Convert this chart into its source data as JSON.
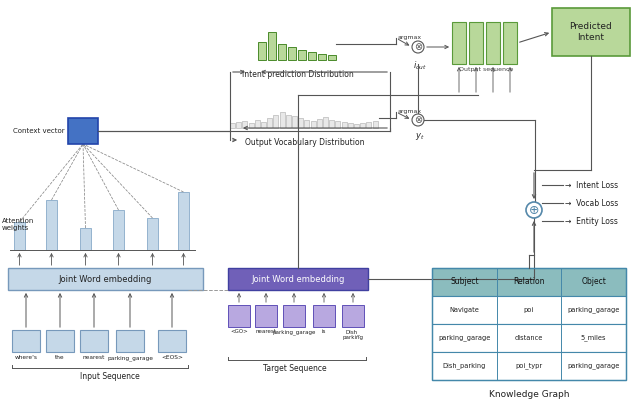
{
  "fig_width": 6.4,
  "fig_height": 4.18,
  "dpi": 100,
  "bg_color": "#ffffff",
  "light_blue": "#c5d8e8",
  "blue": "#4472c4",
  "light_green": "#b8d89a",
  "green_dark": "#5a9a3a",
  "purple": "#7060b8",
  "light_purple": "#b8a8e0",
  "teal_header": "#8bbcbe",
  "teal_light": "#c0d8da",
  "gray_line": "#666666",
  "input_words": [
    "where's",
    "the",
    "nearest",
    "parking_garage",
    "<EOS>"
  ],
  "target_words": [
    "<GO>",
    "nearest",
    "parking_garage",
    "is",
    "Dish_\nparking"
  ],
  "kg_headers": [
    "Subject",
    "Relation",
    "Object"
  ],
  "kg_rows": [
    [
      "Navigate",
      "poi",
      "parking_garage"
    ],
    [
      "parking_garage",
      "distance",
      "5_miles"
    ],
    [
      "Dish_parking",
      "poi_typr",
      "parking_garage"
    ]
  ],
  "intent_bar_heights": [
    18,
    28,
    16,
    13,
    10,
    8,
    6,
    5
  ],
  "vocab_bar_heights": [
    5,
    6,
    7,
    5,
    8,
    6,
    10,
    13,
    16,
    13,
    12,
    10,
    8,
    7,
    9,
    11,
    8,
    7,
    6,
    5,
    4,
    5,
    6,
    7
  ]
}
